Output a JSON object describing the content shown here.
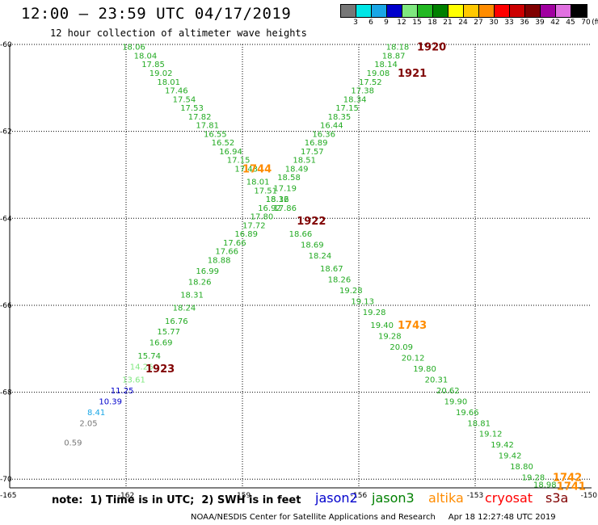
{
  "header": {
    "title": "12:00 – 23:59 UTC 04/17/2019",
    "subtitle": "12 hour collection of altimeter wave heights"
  },
  "scale": {
    "unit_label": "(ft)",
    "bins": [
      {
        "label": "3",
        "color": "#777777"
      },
      {
        "label": "6",
        "color": "#00e6e6"
      },
      {
        "label": "9",
        "color": "#19a6e6"
      },
      {
        "label": "12",
        "color": "#0000cc"
      },
      {
        "label": "15",
        "color": "#7fe87f"
      },
      {
        "label": "18",
        "color": "#22b822"
      },
      {
        "label": "21",
        "color": "#008000"
      },
      {
        "label": "24",
        "color": "#ffff00"
      },
      {
        "label": "27",
        "color": "#ffc800"
      },
      {
        "label": "30",
        "color": "#ff8c00"
      },
      {
        "label": "33",
        "color": "#ff0000"
      },
      {
        "label": "36",
        "color": "#cc0000"
      },
      {
        "label": "39",
        "color": "#800000"
      },
      {
        "label": "42",
        "color": "#a000a0"
      },
      {
        "label": "45",
        "color": "#e070e0"
      },
      {
        "label": "70",
        "color": "#000000"
      }
    ]
  },
  "chart_data": {
    "type": "scatter",
    "xlim": [
      -165,
      -150
    ],
    "ylim": [
      -70.2,
      -60
    ],
    "x_ticks": [
      {
        "value": -165,
        "label": "-165"
      },
      {
        "value": -162,
        "label": "-162"
      },
      {
        "value": -159,
        "label": "-159"
      },
      {
        "value": -156,
        "label": "-156"
      },
      {
        "value": -153,
        "label": "-153"
      },
      {
        "value": -150,
        "label": "-150"
      }
    ],
    "y_ticks": [
      {
        "value": -60,
        "label": "-60"
      },
      {
        "value": -62,
        "label": "-62"
      },
      {
        "value": -64,
        "label": "-64"
      },
      {
        "value": -66,
        "label": "-66"
      },
      {
        "value": -68,
        "label": "-68"
      },
      {
        "value": -70,
        "label": "-70"
      }
    ],
    "grid": true,
    "tracks": [
      {
        "color": "#22aa22",
        "points": [
          {
            "x": -162.1,
            "y": -60.05,
            "v": "18.06"
          },
          {
            "x": -161.8,
            "y": -60.25,
            "v": "18.04"
          },
          {
            "x": -161.6,
            "y": -60.45,
            "v": "17.85"
          },
          {
            "x": -161.4,
            "y": -60.65,
            "v": "19.02"
          },
          {
            "x": -161.2,
            "y": -60.85,
            "v": "18.01"
          },
          {
            "x": -161.0,
            "y": -61.05,
            "v": "17.46"
          },
          {
            "x": -160.8,
            "y": -61.25,
            "v": "17.54"
          },
          {
            "x": -160.6,
            "y": -61.45,
            "v": "17.53"
          },
          {
            "x": -160.4,
            "y": -61.65,
            "v": "17.82"
          },
          {
            "x": -160.2,
            "y": -61.85,
            "v": "17.81"
          },
          {
            "x": -160.0,
            "y": -62.05,
            "v": "16.55"
          },
          {
            "x": -159.8,
            "y": -62.25,
            "v": "16.52"
          },
          {
            "x": -159.6,
            "y": -62.45,
            "v": "16.94"
          },
          {
            "x": -159.4,
            "y": -62.65,
            "v": "17.15"
          },
          {
            "x": -159.2,
            "y": -62.85,
            "v": "17.43"
          },
          {
            "x": -158.9,
            "y": -63.15,
            "v": "18.01"
          },
          {
            "x": -158.7,
            "y": -63.35,
            "v": "17.51"
          },
          {
            "x": -158.4,
            "y": -63.55,
            "v": "18.32"
          },
          {
            "x": -158.2,
            "y": -63.75,
            "v": "17.86"
          },
          {
            "x": -157.8,
            "y": -64.35,
            "v": "18.66"
          },
          {
            "x": -157.5,
            "y": -64.6,
            "v": "18.69"
          },
          {
            "x": -157.3,
            "y": -64.85,
            "v": "18.24"
          },
          {
            "x": -157.0,
            "y": -65.15,
            "v": "18.67"
          },
          {
            "x": -156.8,
            "y": -65.4,
            "v": "18.26"
          },
          {
            "x": -156.5,
            "y": -65.65,
            "v": "19.28"
          },
          {
            "x": -156.2,
            "y": -65.9,
            "v": "19.13"
          },
          {
            "x": -155.9,
            "y": -66.15,
            "v": "19.28"
          },
          {
            "x": -155.7,
            "y": -66.45,
            "v": "19.40"
          },
          {
            "x": -155.5,
            "y": -66.7,
            "v": "19.28"
          },
          {
            "x": -155.2,
            "y": -66.95,
            "v": "20.09"
          },
          {
            "x": -154.9,
            "y": -67.2,
            "v": "20.12"
          },
          {
            "x": -154.6,
            "y": -67.45,
            "v": "19.80"
          },
          {
            "x": -154.3,
            "y": -67.7,
            "v": "20.31"
          },
          {
            "x": -154.0,
            "y": -67.95,
            "v": "20.62"
          },
          {
            "x": -153.8,
            "y": -68.2,
            "v": "19.90"
          },
          {
            "x": -153.5,
            "y": -68.45,
            "v": "19.66"
          },
          {
            "x": -153.2,
            "y": -68.7,
            "v": "18.81"
          },
          {
            "x": -152.9,
            "y": -68.95,
            "v": "19.12"
          },
          {
            "x": -152.6,
            "y": -69.2,
            "v": "19.42"
          },
          {
            "x": -152.4,
            "y": -69.45,
            "v": "19.42"
          },
          {
            "x": -152.1,
            "y": -69.7,
            "v": "18.80"
          },
          {
            "x": -151.8,
            "y": -69.95,
            "v": "19.28"
          },
          {
            "x": -151.5,
            "y": -70.12,
            "v": "18.98"
          }
        ]
      },
      {
        "color": "#22aa22",
        "points": [
          {
            "x": -155.3,
            "y": -60.05,
            "v": "18.18"
          },
          {
            "x": -155.4,
            "y": -60.25,
            "v": "18.87"
          },
          {
            "x": -155.6,
            "y": -60.45,
            "v": "18.14"
          },
          {
            "x": -155.8,
            "y": -60.65,
            "v": "19.08"
          },
          {
            "x": -156.0,
            "y": -60.85,
            "v": "17.52"
          },
          {
            "x": -156.2,
            "y": -61.05,
            "v": "17.38"
          },
          {
            "x": -156.4,
            "y": -61.25,
            "v": "18.34"
          },
          {
            "x": -156.6,
            "y": -61.45,
            "v": "17.15"
          },
          {
            "x": -156.8,
            "y": -61.65,
            "v": "18.35"
          },
          {
            "x": -157.0,
            "y": -61.85,
            "v": "16.44"
          },
          {
            "x": -157.2,
            "y": -62.05,
            "v": "16.36"
          },
          {
            "x": -157.4,
            "y": -62.25,
            "v": "16.89"
          },
          {
            "x": -157.5,
            "y": -62.45,
            "v": "17.57"
          },
          {
            "x": -157.7,
            "y": -62.65,
            "v": "18.51"
          },
          {
            "x": -157.9,
            "y": -62.85,
            "v": "18.49"
          },
          {
            "x": -158.1,
            "y": -63.05,
            "v": "18.58"
          },
          {
            "x": -158.2,
            "y": -63.3,
            "v": "17.19"
          },
          {
            "x": -158.4,
            "y": -63.55,
            "v": "18.16"
          },
          {
            "x": -158.6,
            "y": -63.75,
            "v": "16.92"
          },
          {
            "x": -158.8,
            "y": -63.95,
            "v": "17.80"
          },
          {
            "x": -159.0,
            "y": -64.15,
            "v": "17.72"
          },
          {
            "x": -159.2,
            "y": -64.35,
            "v": "16.89"
          },
          {
            "x": -159.5,
            "y": -64.55,
            "v": "17.66"
          },
          {
            "x": -159.7,
            "y": -64.75,
            "v": "17.66"
          },
          {
            "x": -159.9,
            "y": -64.95,
            "v": "18.88"
          },
          {
            "x": -160.2,
            "y": -65.2,
            "v": "16.99"
          },
          {
            "x": -160.4,
            "y": -65.45,
            "v": "18.26"
          },
          {
            "x": -160.6,
            "y": -65.75,
            "v": "18.31"
          },
          {
            "x": -160.8,
            "y": -66.05,
            "v": "18.24"
          },
          {
            "x": -161.0,
            "y": -66.35,
            "v": "16.76"
          },
          {
            "x": -161.2,
            "y": -66.6,
            "v": "15.77"
          },
          {
            "x": -161.4,
            "y": -66.85,
            "v": "16.69"
          },
          {
            "x": -161.7,
            "y": -67.15,
            "v": "15.74"
          },
          {
            "x": -161.9,
            "y": -67.4,
            "v": "14.26",
            "c": "#7fe87f"
          },
          {
            "x": -162.1,
            "y": -67.7,
            "v": "13.61",
            "c": "#7fe87f"
          },
          {
            "x": -162.4,
            "y": -67.95,
            "v": "11.25",
            "c": "#0000cc"
          },
          {
            "x": -162.7,
            "y": -68.2,
            "v": "10.39",
            "c": "#0000cc"
          },
          {
            "x": -163.0,
            "y": -68.45,
            "v": "8.41",
            "c": "#19a6e6"
          },
          {
            "x": -163.2,
            "y": -68.7,
            "v": "2.05",
            "c": "#777777"
          },
          {
            "x": -163.6,
            "y": -69.15,
            "v": "0.59",
            "c": "#777777"
          }
        ]
      }
    ],
    "time_labels": [
      {
        "x": -154.5,
        "y": -60.05,
        "text": "1920",
        "color": "#800000"
      },
      {
        "x": -155.0,
        "y": -60.65,
        "text": "1921",
        "color": "#800000"
      },
      {
        "x": -159.0,
        "y": -62.85,
        "text": "1744",
        "color": "#ff8c00"
      },
      {
        "x": -157.6,
        "y": -64.05,
        "text": "1922",
        "color": "#800000"
      },
      {
        "x": -155.0,
        "y": -66.45,
        "text": "1743",
        "color": "#ff8c00"
      },
      {
        "x": -161.5,
        "y": -67.45,
        "text": "1923",
        "color": "#800000"
      },
      {
        "x": -151.0,
        "y": -69.95,
        "text": "1742",
        "color": "#ff8c00"
      },
      {
        "x": -150.9,
        "y": -70.15,
        "text": "1741",
        "color": "#ff8c00"
      }
    ]
  },
  "footer": {
    "note": "note:  1) Time is in UTC;  2) SWH is in feet",
    "satellites": [
      {
        "name": "jason2",
        "color": "#0000cc"
      },
      {
        "name": "jason3",
        "color": "#008000"
      },
      {
        "name": "altika",
        "color": "#ff8c00"
      },
      {
        "name": "cryosat",
        "color": "#ff0000"
      },
      {
        "name": "s3a",
        "color": "#800000"
      }
    ],
    "credit": "NOAA/NESDIS Center for Satellite Applications and Research     Apr 18 12:27:48 UTC 2019"
  }
}
